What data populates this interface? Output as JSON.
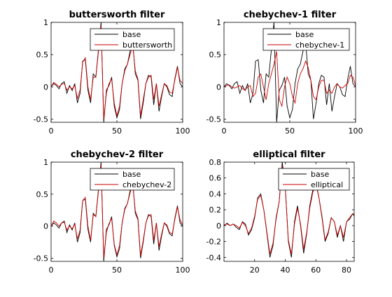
{
  "chart_data": [
    {
      "type": "line",
      "title": "buttersworth filter",
      "xlim": [
        0,
        100
      ],
      "ylim": [
        -0.55,
        1
      ],
      "xticks": [
        0,
        50,
        100
      ],
      "yticks": [
        -0.5,
        0,
        0.5,
        1
      ],
      "xtick_labels": [
        "0",
        "50",
        "100"
      ],
      "ytick_labels": [
        "-0.5",
        "0",
        "0.5",
        "1"
      ],
      "legend_position": "top-right",
      "series": [
        {
          "name": "base",
          "color": "#000000",
          "x": [
            0,
            2,
            4,
            6,
            8,
            10,
            12,
            14,
            16,
            18,
            20,
            22,
            24,
            26,
            28,
            30,
            32,
            34,
            36,
            38,
            40,
            42,
            44,
            46,
            48,
            50,
            52,
            54,
            56,
            58,
            60,
            62,
            64,
            66,
            68,
            70,
            72,
            74,
            76,
            78,
            80,
            82,
            84,
            86,
            88,
            90,
            92,
            94,
            96,
            98,
            100
          ],
          "y": [
            0,
            0.05,
            0.02,
            -0.03,
            0.05,
            0.08,
            -0.1,
            0.02,
            -0.06,
            0.05,
            -0.25,
            -0.1,
            0.4,
            0.42,
            -0.05,
            -0.25,
            0.2,
            0.15,
            0.58,
            1.0,
            -0.55,
            -0.05,
            0.02,
            0.15,
            -0.3,
            -0.48,
            -0.35,
            0.05,
            0.28,
            0.35,
            0.55,
            0.7,
            0.2,
            0.1,
            -0.5,
            -0.25,
            0.05,
            0.18,
            0.15,
            -0.28,
            0.05,
            -0.38,
            -0.15,
            0.05,
            0.0,
            -0.12,
            -0.15,
            0.12,
            0.32,
            0.05,
            0.0
          ]
        },
        {
          "name": "buttersworth",
          "color": "#cc0000",
          "x": [
            0,
            2,
            4,
            6,
            8,
            10,
            12,
            14,
            16,
            18,
            20,
            22,
            24,
            26,
            28,
            30,
            32,
            34,
            36,
            38,
            40,
            42,
            44,
            46,
            48,
            50,
            52,
            54,
            56,
            58,
            60,
            62,
            64,
            66,
            68,
            70,
            72,
            74,
            76,
            78,
            80,
            82,
            84,
            86,
            88,
            90,
            92,
            94,
            96,
            98,
            100
          ],
          "y": [
            0,
            0.07,
            0.04,
            0.0,
            0.04,
            0.05,
            -0.05,
            0.0,
            -0.03,
            0.02,
            -0.18,
            -0.05,
            0.38,
            0.45,
            0.0,
            -0.2,
            0.15,
            0.15,
            0.55,
            0.95,
            -0.5,
            -0.1,
            0.05,
            0.12,
            -0.25,
            -0.45,
            -0.3,
            0.05,
            0.25,
            0.35,
            0.5,
            0.65,
            0.25,
            0.12,
            -0.45,
            -0.2,
            0.05,
            0.15,
            0.18,
            -0.2,
            0.05,
            -0.3,
            -0.12,
            0.05,
            0.02,
            -0.08,
            -0.1,
            0.1,
            0.3,
            0.1,
            0.05
          ]
        }
      ]
    },
    {
      "type": "line",
      "title": "chebychev-1 filter",
      "xlim": [
        0,
        100
      ],
      "ylim": [
        -0.55,
        1
      ],
      "xticks": [
        0,
        50,
        100
      ],
      "yticks": [
        -0.5,
        0,
        0.5,
        1
      ],
      "xtick_labels": [
        "0",
        "50",
        "100"
      ],
      "ytick_labels": [
        "-0.5",
        "0",
        "0.5",
        "1"
      ],
      "legend_position": "top-right",
      "series": [
        {
          "name": "base",
          "color": "#000000",
          "x": [
            0,
            2,
            4,
            6,
            8,
            10,
            12,
            14,
            16,
            18,
            20,
            22,
            24,
            26,
            28,
            30,
            32,
            34,
            36,
            38,
            40,
            42,
            44,
            46,
            48,
            50,
            52,
            54,
            56,
            58,
            60,
            62,
            64,
            66,
            68,
            70,
            72,
            74,
            76,
            78,
            80,
            82,
            84,
            86,
            88,
            90,
            92,
            94,
            96,
            98,
            100
          ],
          "y": [
            0,
            0.05,
            0.02,
            -0.03,
            0.05,
            0.08,
            -0.1,
            0.02,
            -0.06,
            0.05,
            -0.25,
            -0.1,
            0.4,
            0.42,
            -0.05,
            -0.25,
            0.2,
            0.15,
            0.58,
            1.0,
            -0.55,
            -0.05,
            0.02,
            0.15,
            -0.3,
            -0.48,
            -0.35,
            0.05,
            0.28,
            0.35,
            0.55,
            0.7,
            0.2,
            0.1,
            -0.5,
            -0.25,
            0.05,
            0.18,
            0.15,
            -0.28,
            0.05,
            -0.38,
            -0.15,
            0.05,
            0.0,
            -0.12,
            -0.15,
            0.12,
            0.32,
            0.05,
            0.0
          ]
        },
        {
          "name": "chebychev-1",
          "color": "#cc0000",
          "x": [
            0,
            2,
            4,
            6,
            8,
            10,
            12,
            14,
            16,
            18,
            20,
            22,
            24,
            26,
            28,
            30,
            32,
            34,
            36,
            38,
            40,
            42,
            44,
            46,
            48,
            50,
            52,
            54,
            56,
            58,
            60,
            62,
            64,
            66,
            68,
            70,
            72,
            74,
            76,
            78,
            80,
            82,
            84,
            86,
            88,
            90,
            92,
            94,
            96,
            98,
            100
          ],
          "y": [
            0,
            0.02,
            0.03,
            0.0,
            -0.02,
            0.0,
            0.02,
            -0.03,
            -0.05,
            0.0,
            0.02,
            -0.15,
            -0.1,
            0.15,
            0.2,
            0.0,
            -0.2,
            0.05,
            0.2,
            0.35,
            0.55,
            -0.2,
            -0.3,
            0.0,
            0.15,
            0.05,
            -0.15,
            -0.25,
            0.05,
            0.2,
            0.28,
            0.4,
            0.3,
            0.1,
            -0.15,
            -0.2,
            0.0,
            0.1,
            0.1,
            -0.1,
            -0.05,
            -0.1,
            0.0,
            0.05,
            0.0,
            -0.02,
            0.02,
            0.05,
            0.18,
            0.15,
            0.02
          ]
        }
      ]
    },
    {
      "type": "line",
      "title": "chebychev-2 filter",
      "xlim": [
        0,
        100
      ],
      "ylim": [
        -0.55,
        1
      ],
      "xticks": [
        0,
        50,
        100
      ],
      "yticks": [
        -0.5,
        0,
        0.5,
        1
      ],
      "xtick_labels": [
        "0",
        "50",
        "100"
      ],
      "ytick_labels": [
        "-0.5",
        "0",
        "0.5",
        "1"
      ],
      "legend_position": "top-right",
      "series": [
        {
          "name": "base",
          "color": "#000000",
          "x": [
            0,
            2,
            4,
            6,
            8,
            10,
            12,
            14,
            16,
            18,
            20,
            22,
            24,
            26,
            28,
            30,
            32,
            34,
            36,
            38,
            40,
            42,
            44,
            46,
            48,
            50,
            52,
            54,
            56,
            58,
            60,
            62,
            64,
            66,
            68,
            70,
            72,
            74,
            76,
            78,
            80,
            82,
            84,
            86,
            88,
            90,
            92,
            94,
            96,
            98,
            100
          ],
          "y": [
            0,
            0.05,
            0.02,
            -0.03,
            0.05,
            0.08,
            -0.1,
            0.02,
            -0.06,
            0.05,
            -0.25,
            -0.1,
            0.4,
            0.42,
            -0.05,
            -0.25,
            0.2,
            0.15,
            0.58,
            1.0,
            -0.55,
            -0.05,
            0.02,
            0.15,
            -0.3,
            -0.48,
            -0.35,
            0.05,
            0.28,
            0.35,
            0.55,
            0.7,
            0.2,
            0.1,
            -0.5,
            -0.25,
            0.05,
            0.18,
            0.15,
            -0.28,
            0.05,
            -0.38,
            -0.15,
            0.05,
            0.0,
            -0.12,
            -0.15,
            0.12,
            0.32,
            0.05,
            0.0
          ]
        },
        {
          "name": "chebychev-2",
          "color": "#cc0000",
          "x": [
            0,
            2,
            4,
            6,
            8,
            10,
            12,
            14,
            16,
            18,
            20,
            22,
            24,
            26,
            28,
            30,
            32,
            34,
            36,
            38,
            40,
            42,
            44,
            46,
            48,
            50,
            52,
            54,
            56,
            58,
            60,
            62,
            64,
            66,
            68,
            70,
            72,
            74,
            76,
            78,
            80,
            82,
            84,
            86,
            88,
            90,
            92,
            94,
            96,
            98,
            100
          ],
          "y": [
            0,
            0.08,
            0.05,
            0.0,
            0.05,
            0.06,
            -0.06,
            0.0,
            -0.04,
            0.03,
            -0.2,
            -0.06,
            0.4,
            0.45,
            0.0,
            -0.22,
            0.18,
            0.15,
            0.55,
            0.95,
            -0.5,
            -0.1,
            0.04,
            0.12,
            -0.28,
            -0.45,
            -0.3,
            0.05,
            0.26,
            0.35,
            0.52,
            0.65,
            0.24,
            0.12,
            -0.46,
            -0.22,
            0.05,
            0.16,
            0.18,
            -0.22,
            0.05,
            -0.32,
            -0.12,
            0.05,
            0.02,
            -0.1,
            -0.12,
            0.1,
            0.3,
            0.1,
            0.02
          ]
        }
      ]
    },
    {
      "type": "line",
      "title": "elliptical filter",
      "xlim": [
        0,
        85
      ],
      "ylim": [
        -0.45,
        0.8
      ],
      "xticks": [
        20,
        40,
        60,
        80
      ],
      "yticks": [
        -0.4,
        -0.2,
        0,
        0.2,
        0.4,
        0.6,
        0.8
      ],
      "xtick_labels": [
        "20",
        "40",
        "60",
        "80"
      ],
      "ytick_labels": [
        "-0.4",
        "-0.2",
        "0",
        "0.2",
        "0.4",
        "0.6",
        "0.8"
      ],
      "legend_position": "top-right",
      "series": [
        {
          "name": "base",
          "color": "#000000",
          "x": [
            0,
            2,
            4,
            6,
            8,
            10,
            12,
            14,
            16,
            18,
            20,
            22,
            24,
            26,
            28,
            30,
            32,
            34,
            36,
            38,
            40,
            42,
            44,
            46,
            48,
            50,
            52,
            54,
            56,
            58,
            60,
            62,
            64,
            66,
            68,
            70,
            72,
            74,
            76,
            78,
            80,
            82,
            84,
            85
          ],
          "y": [
            0,
            0.03,
            0.0,
            0.02,
            -0.02,
            -0.05,
            0.05,
            0.02,
            -0.12,
            -0.05,
            0.1,
            0.35,
            0.4,
            0.2,
            -0.1,
            -0.4,
            -0.25,
            0.1,
            0.3,
            0.8,
            0.5,
            -0.2,
            -0.4,
            0.05,
            0.25,
            0.0,
            -0.35,
            -0.1,
            0.25,
            0.45,
            0.55,
            0.35,
            0.1,
            -0.2,
            -0.1,
            0.1,
            0.05,
            -0.15,
            0.0,
            -0.2,
            0.05,
            0.08,
            0.15,
            0.12
          ]
        },
        {
          "name": "elliptical",
          "color": "#cc0000",
          "x": [
            0,
            2,
            4,
            6,
            8,
            10,
            12,
            14,
            16,
            18,
            20,
            22,
            24,
            26,
            28,
            30,
            32,
            34,
            36,
            38,
            40,
            42,
            44,
            46,
            48,
            50,
            52,
            54,
            56,
            58,
            60,
            62,
            64,
            66,
            68,
            70,
            72,
            74,
            76,
            78,
            80,
            82,
            84,
            85
          ],
          "y": [
            0.01,
            0.02,
            0.0,
            0.02,
            0.0,
            -0.03,
            0.04,
            0.0,
            -0.1,
            -0.03,
            0.12,
            0.33,
            0.38,
            0.2,
            -0.08,
            -0.36,
            -0.22,
            0.08,
            0.3,
            0.75,
            0.48,
            -0.18,
            -0.36,
            0.02,
            0.22,
            0.02,
            -0.3,
            -0.08,
            0.22,
            0.42,
            0.52,
            0.35,
            0.12,
            -0.18,
            -0.08,
            0.1,
            0.05,
            -0.12,
            0.0,
            -0.15,
            0.05,
            0.1,
            0.15,
            0.15
          ]
        }
      ]
    }
  ]
}
